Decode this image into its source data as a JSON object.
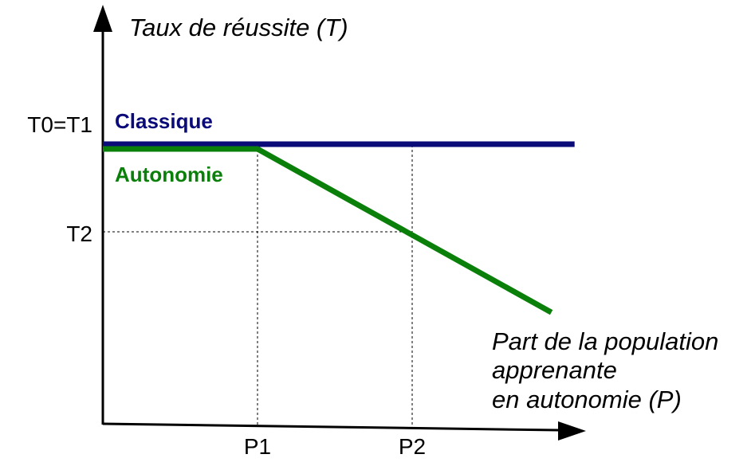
{
  "chart_data": {
    "type": "line",
    "title": "",
    "ylabel": "Taux de réussite (T)",
    "xlabel_lines": [
      "Part de la population",
      "apprenante",
      "en autonomie (P)"
    ],
    "x_ticks": [
      {
        "label": "P1",
        "value": 1
      },
      {
        "label": "P2",
        "value": 2
      }
    ],
    "y_ticks": [
      {
        "label": "T0=T1",
        "value": 1.0
      },
      {
        "label": "T2",
        "value": 0.6
      }
    ],
    "xlim": [
      0,
      3
    ],
    "ylim": [
      -0.3,
      1.7
    ],
    "series": [
      {
        "name": "Classique",
        "color": "#0a0a78",
        "x": [
          0,
          3.05
        ],
        "y": [
          1.0,
          1.0
        ]
      },
      {
        "name": "Autonomie",
        "color": "#0a800a",
        "x": [
          0,
          1,
          2,
          2.9
        ],
        "y": [
          1.0,
          1.0,
          0.6,
          0.24
        ]
      }
    ],
    "grid": false,
    "guide_lines": "dashed at P1, P2 and T2"
  }
}
